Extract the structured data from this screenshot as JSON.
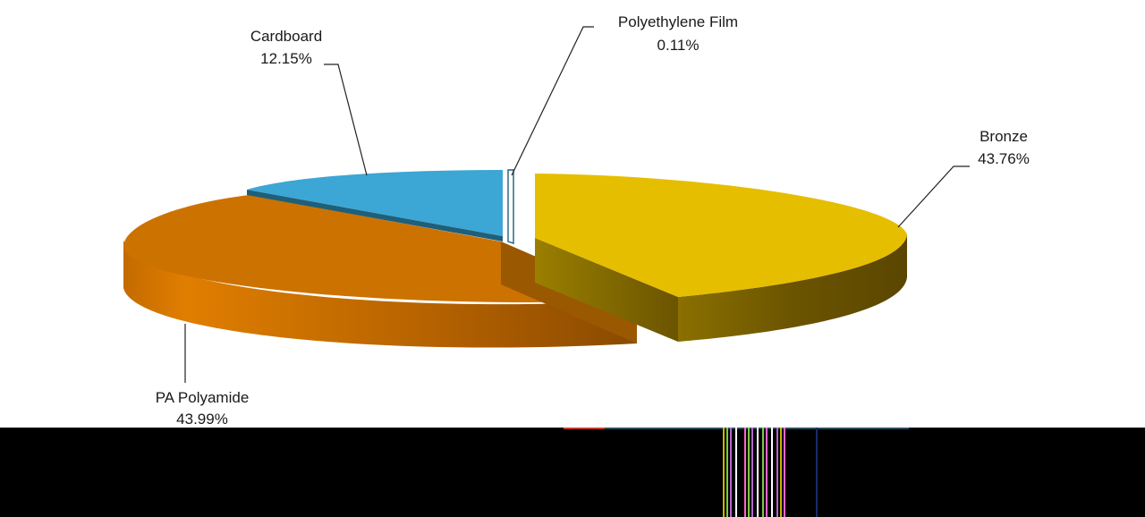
{
  "chart_data": {
    "type": "pie",
    "style": "3d-exploded",
    "title": "",
    "legend": "none",
    "slices": [
      {
        "label": "Bronze",
        "value": 43.76,
        "value_label": "43.76%",
        "color": "#E6BE00",
        "side_color": "#6B5400"
      },
      {
        "label": "Polyethylene Film",
        "value": 0.11,
        "value_label": "0.11%",
        "color": "#FFFFFF",
        "side_color": "#1F5F7A"
      },
      {
        "label": "Cardboard",
        "value": 12.15,
        "value_label": "12.15%",
        "color": "#3CA6D4",
        "side_color": "#1F5F7A"
      },
      {
        "label": "PA Polyamide",
        "value": 43.99,
        "value_label": "43.99%",
        "color": "#CC7200",
        "side_color": "#8A4A00"
      }
    ]
  },
  "bottom_band": {
    "color": "#000000"
  }
}
